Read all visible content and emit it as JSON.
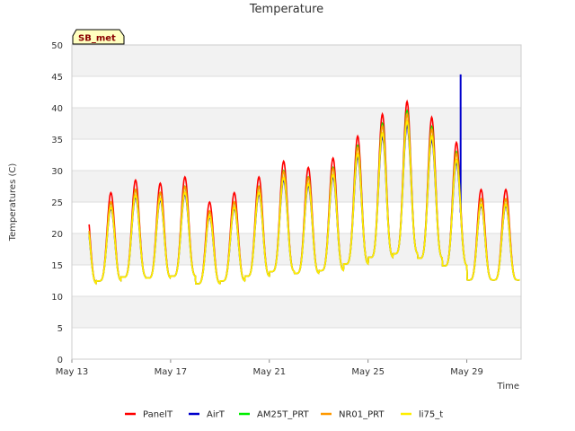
{
  "chart_data": {
    "type": "line",
    "title": "Temperature",
    "xlabel": "Time",
    "ylabel": "Temperatures (C)",
    "badge": "SB_met",
    "ylim": [
      0,
      50
    ],
    "yticks": [
      0,
      5,
      10,
      15,
      20,
      25,
      30,
      35,
      40,
      45,
      50
    ],
    "xlim": [
      0,
      18.2
    ],
    "xticks": [
      {
        "value": 0,
        "label": "May 13"
      },
      {
        "value": 4,
        "label": "May 17"
      },
      {
        "value": 8,
        "label": "May 21"
      },
      {
        "value": 12,
        "label": "May 25"
      },
      {
        "value": 16,
        "label": "May 29"
      }
    ],
    "grid": true,
    "legend_position": "bottom",
    "daily_peaks": [
      24,
      25.5,
      27.5,
      27,
      28,
      24,
      25.5,
      28,
      30.5,
      29.5,
      31,
      34.5,
      38,
      40,
      37.5,
      33.5,
      26
    ],
    "series": [
      {
        "name": "PanelT",
        "color": "#ff0000",
        "offset": 1.0,
        "amp": 1.0
      },
      {
        "name": "AirT",
        "color": "#0000cc",
        "offset": 0.0,
        "amp": 0.88,
        "spike": {
          "x": 15.75,
          "y": 45.3
        }
      },
      {
        "name": "AM25T_PRT",
        "color": "#00ee00",
        "offset": -0.5,
        "amp": 1.0
      },
      {
        "name": "NR01_PRT",
        "color": "#ff9900",
        "offset": 0.2,
        "amp": 0.95
      },
      {
        "name": "li75_t",
        "color": "#ffee00",
        "offset": -0.3,
        "amp": 0.92
      }
    ]
  }
}
